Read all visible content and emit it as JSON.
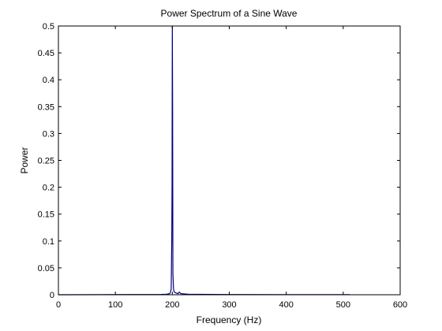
{
  "chart_data": {
    "type": "line",
    "title": "Power Spectrum of a Sine Wave",
    "xlabel": "Frequency (Hz)",
    "ylabel": "Power",
    "xlim": [
      0,
      600
    ],
    "ylim": [
      0,
      0.5
    ],
    "xticks": [
      0,
      100,
      200,
      300,
      400,
      500,
      600
    ],
    "yticks": [
      0,
      0.05,
      0.1,
      0.15,
      0.2,
      0.25,
      0.3,
      0.35,
      0.4,
      0.45,
      0.5
    ],
    "grid": false,
    "legend": "none",
    "series": [
      {
        "color": "#000080",
        "x": [
          0,
          180,
          190,
          195,
          196,
          197,
          198,
          199,
          199.5,
          200,
          200.5,
          201,
          202,
          203,
          205,
          210,
          212,
          215,
          230,
          300,
          400,
          500,
          512
        ],
        "y": [
          0,
          0.0005,
          0.001,
          0.002,
          0.003,
          0.006,
          0.01,
          0.1,
          0.2,
          0.5,
          0.35,
          0.04,
          0.012,
          0.006,
          0.004,
          0.002,
          0.005,
          0.002,
          0.0008,
          0.0004,
          0.0003,
          0.0002,
          0.0002
        ]
      }
    ]
  }
}
